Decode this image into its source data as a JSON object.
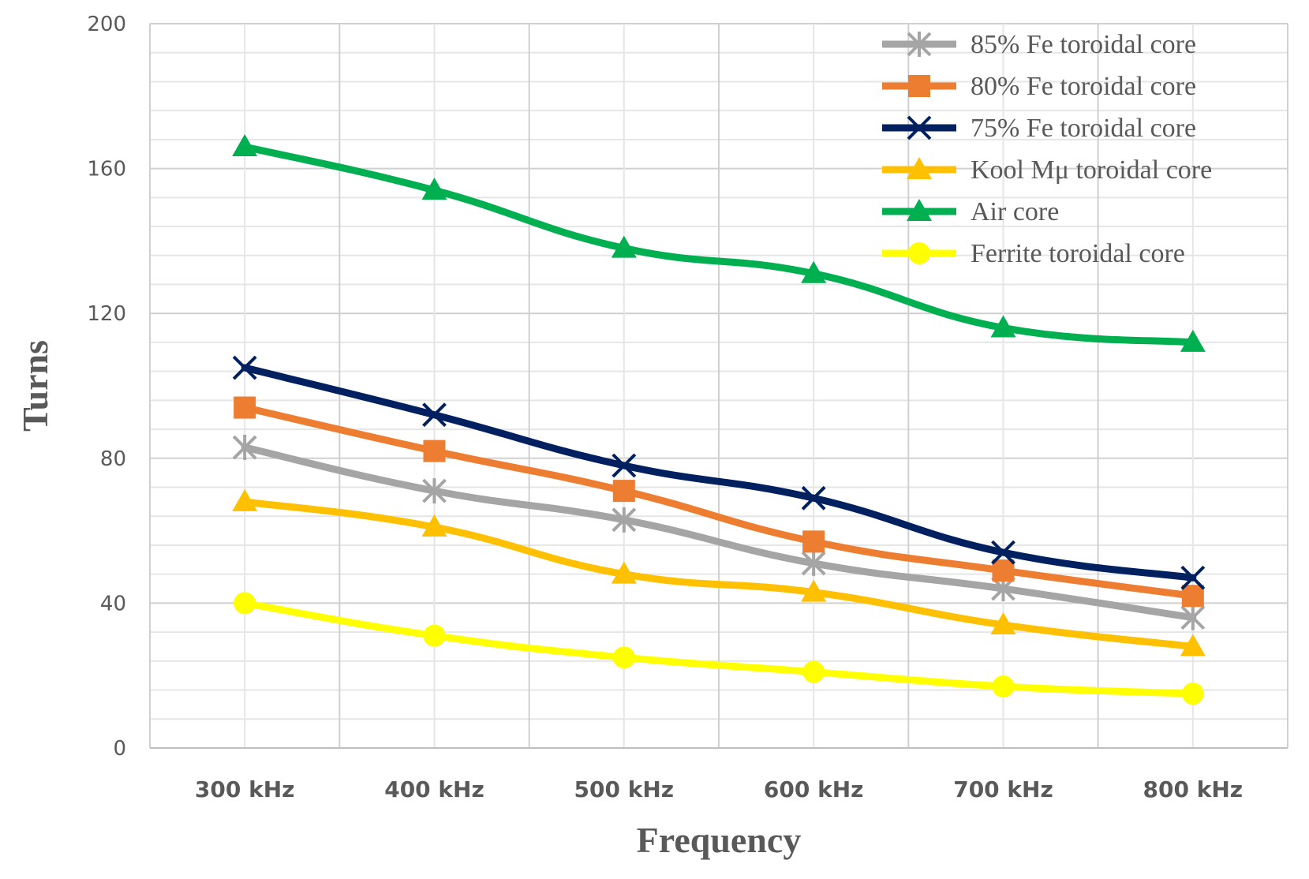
{
  "chart_data": {
    "type": "line",
    "title": "",
    "xlabel": "Frequency",
    "ylabel": "Turns",
    "categories": [
      "300 kHz",
      "400 kHz",
      "500 kHz",
      "600 kHz",
      "700 kHz",
      "800 kHz"
    ],
    "ylim": [
      0,
      200
    ],
    "yticks": [
      0,
      40,
      80,
      120,
      160,
      200
    ],
    "grid": true,
    "smooth": true,
    "legend_position": "top-right",
    "series": [
      {
        "name": "85% Fe toroidal core",
        "color": "#a5a5a5",
        "marker": "asterisk",
        "values": [
          83,
          71,
          63,
          51,
          44,
          36
        ]
      },
      {
        "name": "80% Fe toroidal core",
        "color": "#ed7d31",
        "marker": "square",
        "values": [
          94,
          82,
          71,
          57,
          49,
          42
        ]
      },
      {
        "name": "75% Fe toroidal core",
        "color": "#002060",
        "marker": "x",
        "values": [
          105,
          92,
          78,
          69,
          54,
          47
        ]
      },
      {
        "name": "Kool Mμ toroidal core",
        "color": "#ffc000",
        "marker": "triangle",
        "values": [
          68,
          61,
          48,
          43,
          34,
          28
        ]
      },
      {
        "name": "Air core",
        "color": "#00b050",
        "marker": "triangle",
        "values": [
          166,
          154,
          138,
          131,
          116,
          112
        ]
      },
      {
        "name": "Ferrite toroidal core",
        "color": "#ffff00",
        "marker": "circle",
        "values": [
          40,
          31,
          25,
          21,
          17,
          15
        ]
      }
    ]
  }
}
